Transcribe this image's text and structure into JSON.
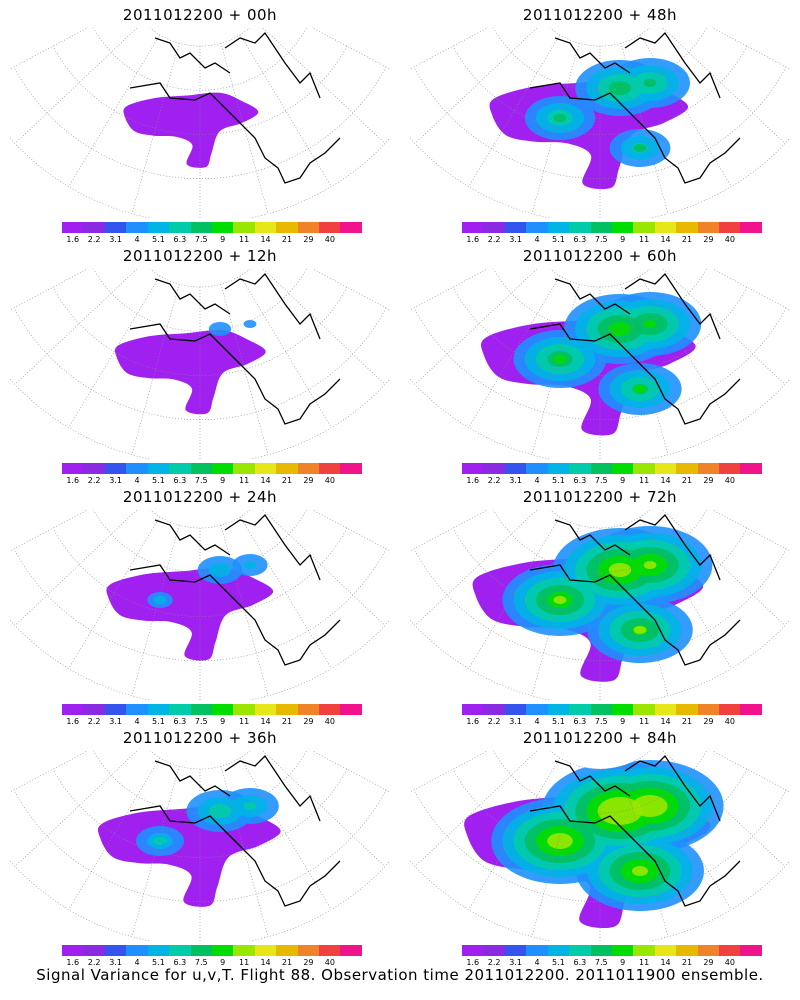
{
  "panels": [
    {
      "title": "2011012200 + 00h",
      "level": 0
    },
    {
      "title": "2011012200 + 48h",
      "level": 4
    },
    {
      "title": "2011012200 + 12h",
      "level": 1
    },
    {
      "title": "2011012200 + 60h",
      "level": 5
    },
    {
      "title": "2011012200 + 24h",
      "level": 2
    },
    {
      "title": "2011012200 + 72h",
      "level": 6
    },
    {
      "title": "2011012200 + 36h",
      "level": 3
    },
    {
      "title": "2011012200 + 84h",
      "level": 7
    }
  ],
  "colorbar": {
    "labels": [
      "1.6",
      "2.2",
      "3.1",
      "4",
      "5.1",
      "6.3",
      "7.5",
      "9",
      "11",
      "14",
      "21",
      "29",
      "40"
    ],
    "colors": [
      "#a020f0",
      "#8a2be2",
      "#3355ee",
      "#1e90ff",
      "#00b4e6",
      "#00ccaa",
      "#00c060",
      "#00dd00",
      "#99e600",
      "#e6e619",
      "#e6b800",
      "#f08228",
      "#f04040",
      "#f0148c"
    ]
  },
  "caption": "Signal Variance for u,v,T. Flight 88. Observation time 2011012200. 2011011900 ensemble."
}
